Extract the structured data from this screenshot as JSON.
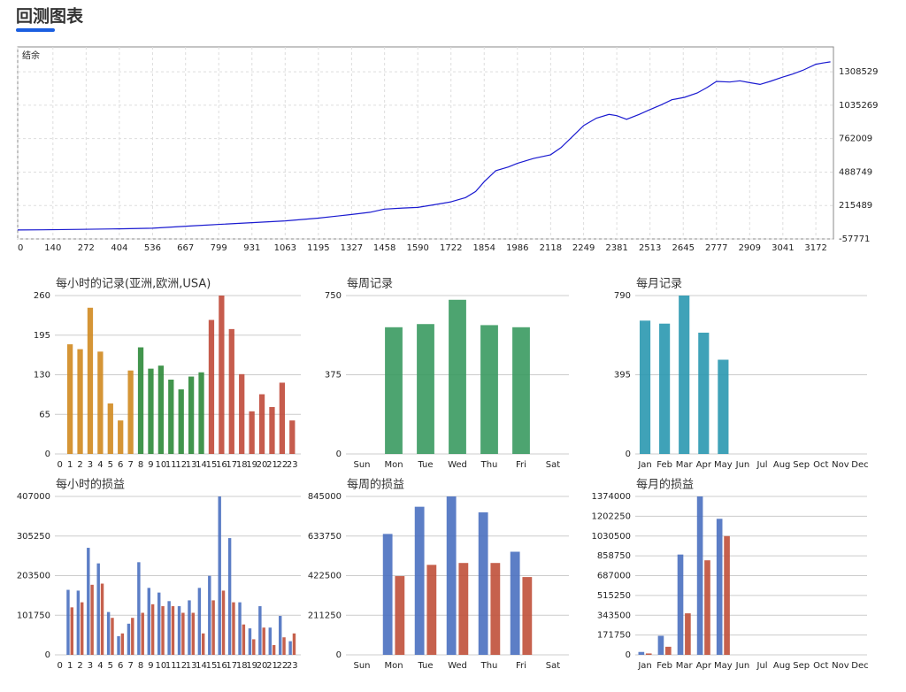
{
  "page_title": "回测图表",
  "chart_data": [
    {
      "type": "line",
      "title": "结余",
      "color": "#1a1ad0",
      "grid": true,
      "x": [
        0,
        100,
        250,
        400,
        536,
        700,
        931,
        1063,
        1195,
        1327,
        1400,
        1458,
        1530,
        1590,
        1650,
        1722,
        1780,
        1820,
        1854,
        1900,
        1950,
        1986,
        2050,
        2118,
        2160,
        2200,
        2250,
        2300,
        2350,
        2381,
        2420,
        2470,
        2513,
        2560,
        2600,
        2650,
        2700,
        2740,
        2777,
        2830,
        2870,
        2909,
        2950,
        2990,
        3041,
        3080,
        3120,
        3172,
        3200,
        3230
      ],
      "values": [
        15000,
        17000,
        20000,
        25000,
        30000,
        50000,
        75000,
        90000,
        112000,
        142000,
        160000,
        186000,
        195000,
        200000,
        220000,
        245000,
        280000,
        330000,
        410000,
        500000,
        530000,
        560000,
        600000,
        630000,
        690000,
        770000,
        870000,
        930000,
        960000,
        950000,
        920000,
        960000,
        1000000,
        1040000,
        1080000,
        1100000,
        1135000,
        1180000,
        1230000,
        1225000,
        1235000,
        1220000,
        1205000,
        1230000,
        1265000,
        1290000,
        1320000,
        1370000,
        1380000,
        1390000
      ],
      "xlim": [
        0,
        3242
      ],
      "ylim": [
        -57771,
        1512000
      ],
      "xticks": [
        0,
        140,
        272,
        404,
        536,
        667,
        799,
        931,
        1063,
        1195,
        1327,
        1458,
        1590,
        1722,
        1854,
        1986,
        2118,
        2249,
        2381,
        2513,
        2645,
        2777,
        2909,
        3041,
        3172
      ],
      "yticks": [
        -57771,
        215489,
        488749,
        762009,
        1035269,
        1308529
      ]
    },
    {
      "type": "bar",
      "title": "每小时的记录(亚洲,欧洲,USA)",
      "grid": true,
      "categories": [
        "0",
        "1",
        "2",
        "3",
        "4",
        "5",
        "6",
        "7",
        "8",
        "9",
        "10",
        "11",
        "12",
        "13",
        "14",
        "15",
        "16",
        "17",
        "18",
        "19",
        "20",
        "21",
        "22",
        "23"
      ],
      "values": [
        0,
        180,
        172,
        240,
        168,
        83,
        55,
        137,
        175,
        140,
        145,
        122,
        106,
        127,
        134,
        220,
        260,
        205,
        131,
        70,
        98,
        77,
        117,
        55
      ],
      "colors": [
        "#d08a20",
        "#d08a20",
        "#d08a20",
        "#d08a20",
        "#d08a20",
        "#d08a20",
        "#d08a20",
        "#d08a20",
        "#2e8a3a",
        "#2e8a3a",
        "#2e8a3a",
        "#2e8a3a",
        "#2e8a3a",
        "#2e8a3a",
        "#2e8a3a",
        "#c04a3a",
        "#c04a3a",
        "#c04a3a",
        "#c04a3a",
        "#c04a3a",
        "#c04a3a",
        "#c04a3a",
        "#c04a3a",
        "#c04a3a"
      ],
      "ylim": [
        0,
        260
      ],
      "yticks": [
        0,
        65,
        130,
        195,
        260
      ]
    },
    {
      "type": "bar",
      "title": "每周记录",
      "grid": true,
      "categories": [
        "Sun",
        "Mon",
        "Tue",
        "Wed",
        "Thu",
        "Fri",
        "Sat"
      ],
      "values": [
        0,
        600,
        615,
        730,
        610,
        600,
        0
      ],
      "color": "#3a9a60",
      "ylim": [
        0,
        750
      ],
      "yticks": [
        0,
        375,
        750
      ]
    },
    {
      "type": "bar",
      "title": "每月记录",
      "grid": true,
      "categories": [
        "Jan",
        "Feb",
        "Mar",
        "Apr",
        "May",
        "Jun",
        "Jul",
        "Aug",
        "Sep",
        "Oct",
        "Nov",
        "Dec"
      ],
      "values": [
        665,
        650,
        790,
        605,
        470,
        0,
        0,
        0,
        0,
        0,
        0,
        0
      ],
      "color": "#2a98b0",
      "ylim": [
        0,
        790
      ],
      "yticks": [
        0,
        395,
        790
      ]
    },
    {
      "type": "bar",
      "title": "每小时的损益",
      "grid": true,
      "categories": [
        "0",
        "1",
        "2",
        "3",
        "4",
        "5",
        "6",
        "7",
        "8",
        "9",
        "10",
        "11",
        "12",
        "13",
        "14",
        "15",
        "16",
        "17",
        "18",
        "19",
        "20",
        "21",
        "22",
        "23"
      ],
      "series": [
        {
          "color": "#4a70c0",
          "values": [
            0,
            167000,
            165000,
            275000,
            235000,
            110000,
            48000,
            80000,
            238000,
            172000,
            160000,
            138000,
            125000,
            140000,
            172000,
            203000,
            407000,
            300000,
            135000,
            68000,
            125000,
            70000,
            100000,
            35000
          ]
        },
        {
          "color": "#c0503a",
          "values": [
            0,
            122000,
            135000,
            180000,
            183000,
            95000,
            55000,
            95000,
            108000,
            130000,
            125000,
            125000,
            108000,
            108000,
            55000,
            140000,
            165000,
            135000,
            78000,
            40000,
            70000,
            25000,
            45000,
            55000
          ]
        }
      ],
      "ylim": [
        0,
        407000
      ],
      "yticks": [
        0,
        101750,
        203500,
        305250,
        407000
      ]
    },
    {
      "type": "bar",
      "title": "每周的损益",
      "grid": true,
      "categories": [
        "Sun",
        "Mon",
        "Tue",
        "Wed",
        "Thu",
        "Fri",
        "Sat"
      ],
      "series": [
        {
          "color": "#4a70c0",
          "values": [
            0,
            645000,
            790000,
            845000,
            760000,
            550000,
            0
          ]
        },
        {
          "color": "#c0503a",
          "values": [
            0,
            420000,
            480000,
            490000,
            490000,
            415000,
            0
          ]
        }
      ],
      "ylim": [
        0,
        845000
      ],
      "yticks": [
        0,
        211250,
        422500,
        633750,
        845000
      ]
    },
    {
      "type": "bar",
      "title": "每月的损益",
      "grid": true,
      "categories": [
        "Jan",
        "Feb",
        "Mar",
        "Apr",
        "May",
        "Jun",
        "Jul",
        "Aug",
        "Sep",
        "Oct",
        "Nov",
        "Dec"
      ],
      "series": [
        {
          "color": "#4a70c0",
          "values": [
            25000,
            165000,
            870000,
            1374000,
            1180000,
            0,
            0,
            0,
            0,
            0,
            0,
            0
          ]
        },
        {
          "color": "#c0503a",
          "values": [
            12000,
            70000,
            360000,
            820000,
            1030000,
            0,
            0,
            0,
            0,
            0,
            0,
            0
          ]
        }
      ],
      "ylim": [
        0,
        1374000
      ],
      "yticks": [
        0,
        171750,
        343500,
        515250,
        687000,
        858750,
        1030500,
        1202250,
        1374000
      ]
    }
  ]
}
